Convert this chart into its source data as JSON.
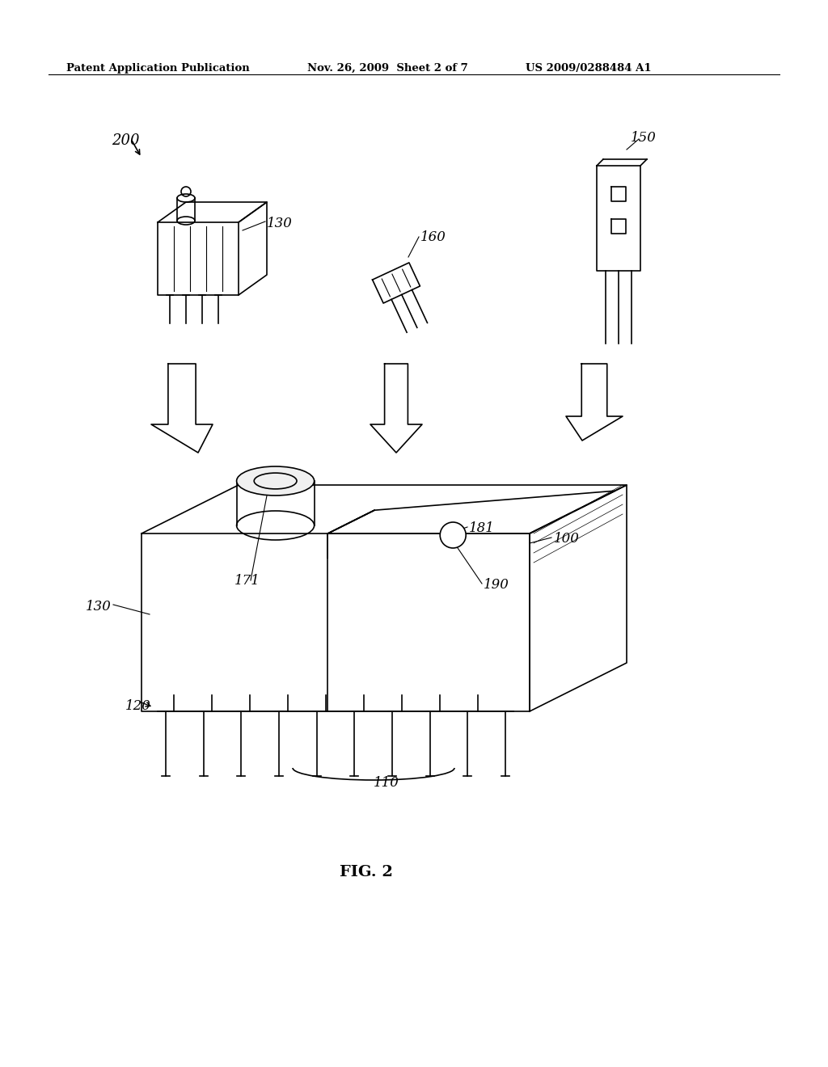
{
  "bg_color": "#ffffff",
  "line_color": "#000000",
  "header_left": "Patent Application Publication",
  "header_mid": "Nov. 26, 2009  Sheet 2 of 7",
  "header_right": "US 2009/0288484 A1",
  "fig_label": "FIG. 2",
  "label_200": "200",
  "label_130_top": "130",
  "label_160": "160",
  "label_150": "150",
  "label_100": "100",
  "label_181": "181",
  "label_171": "171",
  "label_190": "190",
  "label_130_bot": "130",
  "label_120": "120",
  "label_110": "110"
}
